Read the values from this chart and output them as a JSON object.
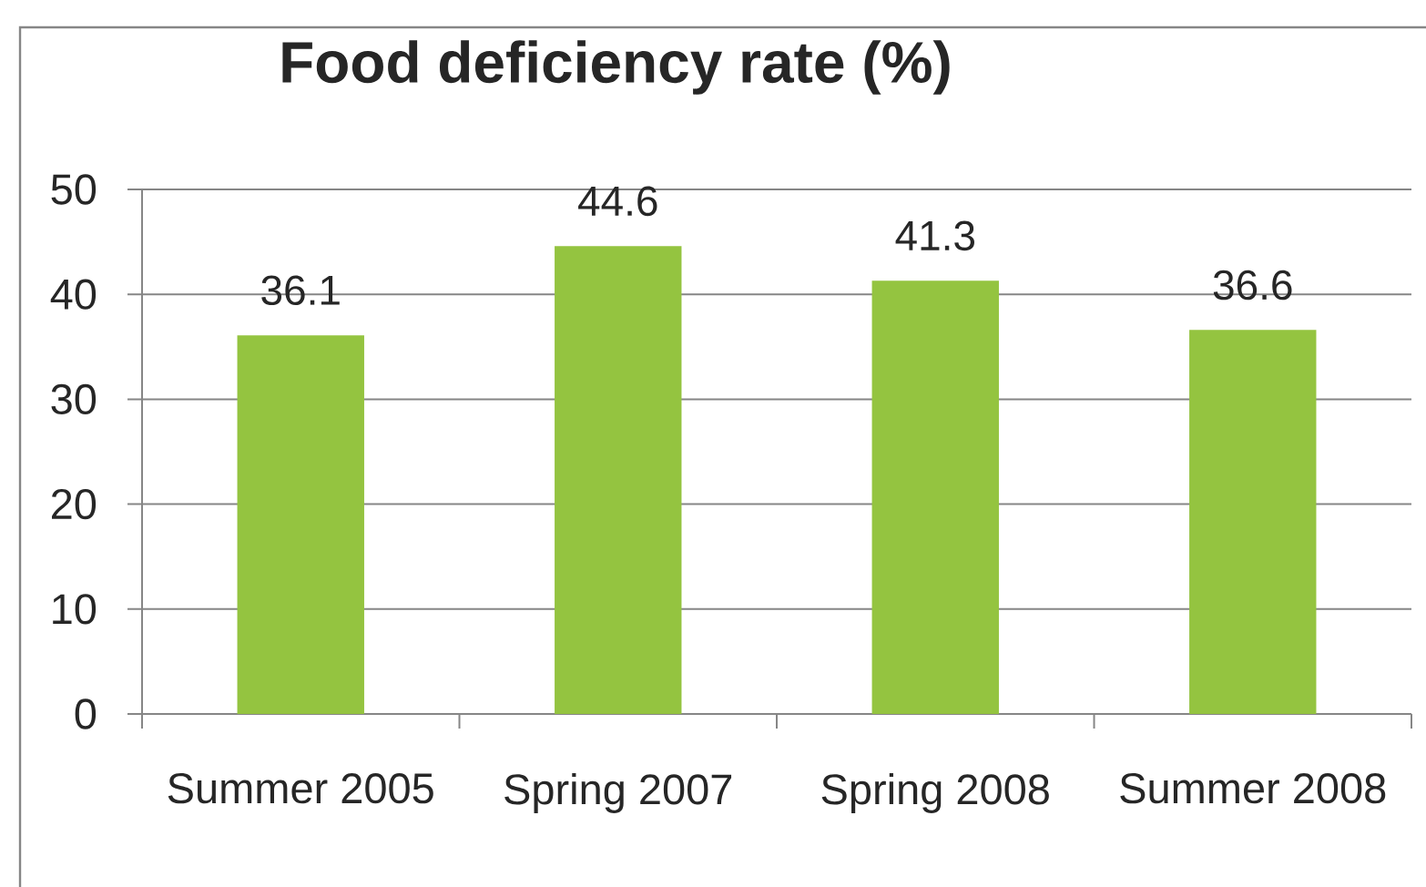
{
  "chart_data": {
    "type": "bar",
    "title": "Food deficiency rate (%)",
    "categories": [
      "Summer 2005",
      "Spring 2007",
      "Spring 2008",
      "Summer 2008"
    ],
    "values": [
      36.1,
      44.6,
      41.3,
      36.6
    ],
    "color": "#94c440",
    "ylim": [
      0,
      50
    ],
    "yticks": [
      0,
      10,
      20,
      30,
      40,
      50
    ],
    "grid": "y",
    "data_labels": true
  }
}
